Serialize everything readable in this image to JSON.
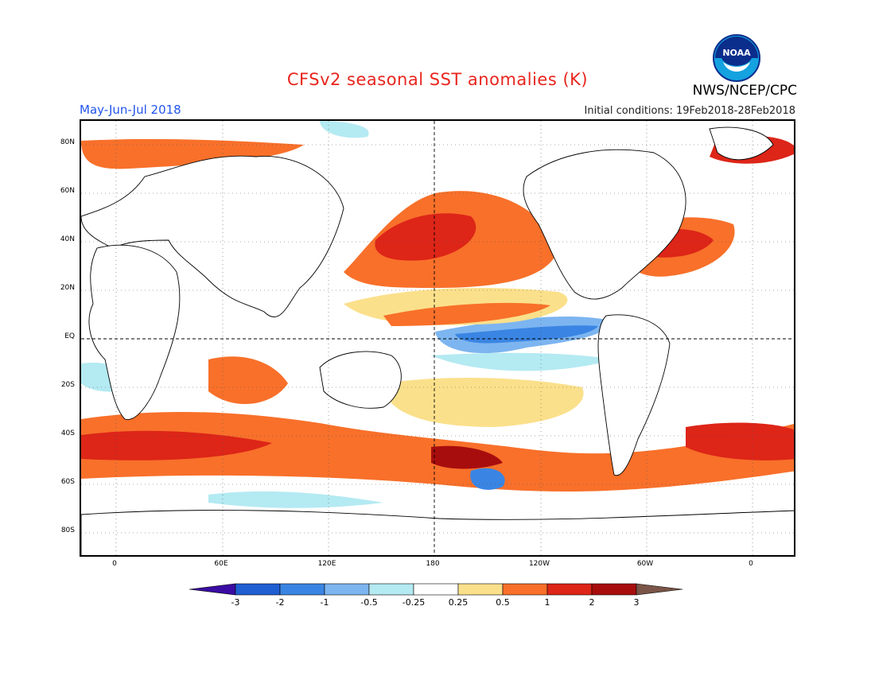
{
  "header": {
    "title": "CFSv2 seasonal SST anomalies (K)",
    "agency": "NWS/NCEP/CPC",
    "period": "May-Jun-Jul 2018",
    "initial_conditions": "Initial conditions: 19Feb2018-28Feb2018",
    "logo_text": "NOAA"
  },
  "map": {
    "lat_labels": [
      "80N",
      "60N",
      "40N",
      "20N",
      "EQ",
      "20S",
      "40S",
      "60S",
      "80S"
    ],
    "lon_labels": [
      "0",
      "60E",
      "120E",
      "180",
      "120W",
      "60W",
      "0"
    ],
    "projection": "cylindrical equidistant, centered on 180",
    "grid": "dotted lines every 20 degrees latitude and 30 degrees longitude",
    "reference_lines": "dashed equator and 180 meridian"
  },
  "legend": {
    "labels": [
      "-3",
      "-2",
      "-1",
      "-0.5",
      "-0.25",
      "0.25",
      "0.5",
      "1",
      "2",
      "3"
    ],
    "colors": [
      "#3a0ca3",
      "#1f5fd1",
      "#3a85e3",
      "#7db5f0",
      "#b4eaf2",
      "#ffffff",
      "#fbe08b",
      "#f8702a",
      "#dd2518",
      "#a80d0d",
      "#7a5548"
    ]
  }
}
